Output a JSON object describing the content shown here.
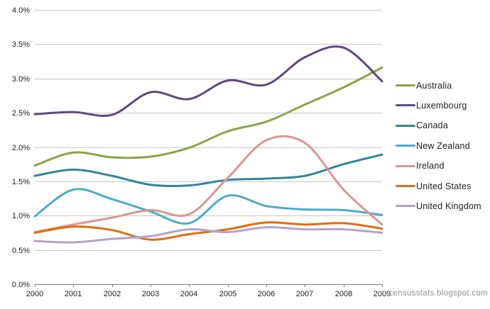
{
  "watermark": {
    "text": "censusstats.blogspot.com"
  },
  "chart_data": {
    "type": "line",
    "title": "",
    "xlabel": "",
    "ylabel": "",
    "line_style": "smooth",
    "grid": true,
    "legend_position": "right",
    "x": [
      2000,
      2001,
      2002,
      2003,
      2004,
      2005,
      2006,
      2007,
      2008,
      2009
    ],
    "x_tick_labels": [
      "2000",
      "2001",
      "2002",
      "2003",
      "2004",
      "2005",
      "2006",
      "2007",
      "2008",
      "2009"
    ],
    "y_axis": {
      "min": 0,
      "max": 4,
      "step": 0.5,
      "unit": "%"
    },
    "y_tick_labels": [
      "0.0%",
      "0.5%",
      "1.0%",
      "1.5%",
      "2.0%",
      "2.5%",
      "3.0%",
      "3.5%",
      "4.0%"
    ],
    "axis_color": "#808080",
    "gridline_color": "#c6c6c6",
    "label_color": "#1d1d1d",
    "series": [
      {
        "name": "Australia",
        "color": "#8ba446",
        "values": [
          1.73,
          1.92,
          1.85,
          1.86,
          1.99,
          2.23,
          2.37,
          2.62,
          2.87,
          3.16
        ]
      },
      {
        "name": "Luxembourg",
        "color": "#5f497a",
        "values": [
          2.48,
          2.51,
          2.47,
          2.8,
          2.7,
          2.97,
          2.91,
          3.31,
          3.45,
          2.96
        ]
      },
      {
        "name": "Canada",
        "color": "#31849b",
        "values": [
          1.58,
          1.67,
          1.58,
          1.45,
          1.44,
          1.52,
          1.54,
          1.58,
          1.75,
          1.89
        ]
      },
      {
        "name": "New Zealand",
        "color": "#4bacc6",
        "values": [
          0.99,
          1.38,
          1.24,
          1.06,
          0.89,
          1.29,
          1.14,
          1.09,
          1.08,
          1.01
        ]
      },
      {
        "name": "Ireland",
        "color": "#d99694",
        "values": [
          0.76,
          0.87,
          0.97,
          1.08,
          1.02,
          1.55,
          2.1,
          2.06,
          1.38,
          0.87
        ]
      },
      {
        "name": "United States",
        "color": "#e36c09",
        "values": [
          0.75,
          0.84,
          0.79,
          0.65,
          0.73,
          0.8,
          0.9,
          0.87,
          0.89,
          0.81
        ]
      },
      {
        "name": "United Kingdom",
        "color": "#b3a2c7",
        "values": [
          0.63,
          0.61,
          0.66,
          0.7,
          0.8,
          0.76,
          0.83,
          0.8,
          0.8,
          0.75
        ]
      }
    ]
  }
}
